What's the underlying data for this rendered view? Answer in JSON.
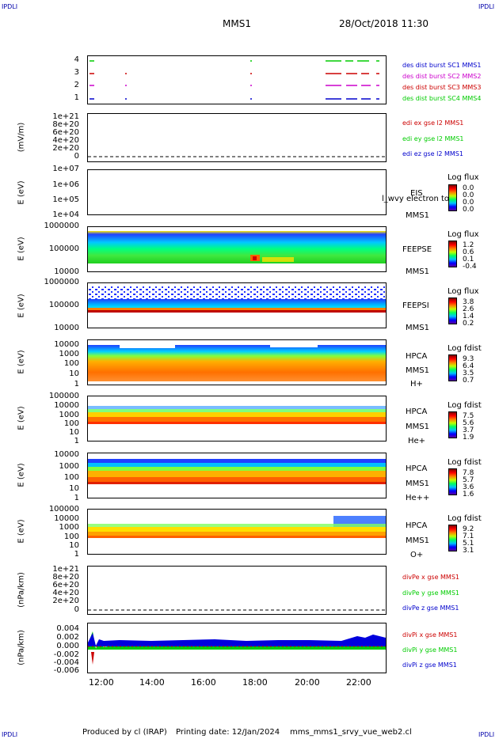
{
  "corners": {
    "tl": "IPDLI",
    "tr": "IPDLI",
    "bl": "IPDLI",
    "br": "IPDLI"
  },
  "header": {
    "spacecraft": "MMS1",
    "datetime": "28/Oct/2018 11:30"
  },
  "colors": {
    "red": "#ff0000",
    "green": "#00cc00",
    "blue": "#0000cc",
    "magenta": "#cc00cc"
  },
  "panels": [
    {
      "id": "burst",
      "ylabel": "",
      "ticks": [
        "4",
        "3",
        "2",
        "1"
      ],
      "legend": [
        {
          "text": "des dist burst SC1 MMS1",
          "color": "#0000cc"
        },
        {
          "text": "des dist burst SC2 MMS2",
          "color": "#cc00cc"
        },
        {
          "text": "des dist burst SC3 MMS3",
          "color": "#cc0000"
        },
        {
          "text": "des dist burst SC4 MMS4",
          "color": "#00cc00"
        }
      ]
    },
    {
      "id": "edi",
      "ylabel": "(mV/m)",
      "ticks": [
        "1e+21",
        "8e+20",
        "6e+20",
        "4e+20",
        "2e+20",
        "0"
      ],
      "legend": [
        {
          "text": "edi ex gse l2 MMS1",
          "color": "#cc0000"
        },
        {
          "text": "edi ey gse l2 MMS1",
          "color": "#00cc00"
        },
        {
          "text": "edi ez gse l2 MMS1",
          "color": "#0000cc"
        }
      ]
    },
    {
      "id": "eis",
      "ylabel": "E (eV)",
      "ticks": [
        "1e+07",
        "1e+06",
        "1e+05",
        "1e+04"
      ],
      "side": [
        "EIS",
        "MMS1"
      ],
      "overlay": "l_wvy electron to",
      "cb_title": "Log flux",
      "cb_vals": [
        "0.0",
        "0.0",
        "0.0",
        "0.0"
      ]
    },
    {
      "id": "feepse",
      "ylabel": "E (eV)",
      "ticks": [
        "1000000",
        "100000",
        "10000"
      ],
      "side": [
        "FEEPSE",
        "MMS1"
      ],
      "cb_title": "Log flux",
      "cb_vals": [
        "1.2",
        "0.6",
        "0.1",
        "-0.4"
      ]
    },
    {
      "id": "feepsi",
      "ylabel": "E (eV)",
      "ticks": [
        "1000000",
        "100000",
        "10000"
      ],
      "side": [
        "FEEPSI",
        "MMS1"
      ],
      "cb_title": "Log flux",
      "cb_vals": [
        "3.8",
        "2.6",
        "1.4",
        "0.2"
      ]
    },
    {
      "id": "hpca_h",
      "ylabel": "E (eV)",
      "ticks": [
        "10000",
        "1000",
        "100",
        "10",
        "1"
      ],
      "side": [
        "HPCA",
        "MMS1",
        "H+"
      ],
      "cb_title": "Log fdist",
      "cb_vals": [
        "9.3",
        "6.4",
        "3.5",
        "0.7"
      ]
    },
    {
      "id": "hpca_he",
      "ylabel": "E (eV)",
      "ticks": [
        "100000",
        "10000",
        "1000",
        "100",
        "10",
        "1"
      ],
      "side": [
        "HPCA",
        "MMS1",
        "He+"
      ],
      "cb_title": "Log fdist",
      "cb_vals": [
        "7.5",
        "5.6",
        "3.7",
        "1.9"
      ]
    },
    {
      "id": "hpca_hepp",
      "ylabel": "E (eV)",
      "ticks": [
        "10000",
        "1000",
        "100",
        "10",
        "1"
      ],
      "side": [
        "HPCA",
        "MMS1",
        "He++"
      ],
      "cb_title": "Log fdist",
      "cb_vals": [
        "7.8",
        "5.7",
        "3.6",
        "1.6"
      ]
    },
    {
      "id": "hpca_o",
      "ylabel": "E (eV)",
      "ticks": [
        "100000",
        "10000",
        "1000",
        "100",
        "10",
        "1"
      ],
      "side": [
        "HPCA",
        "MMS1",
        "O+"
      ],
      "cb_title": "Log fdist",
      "cb_vals": [
        "9.2",
        "7.1",
        "5.1",
        "3.1"
      ]
    },
    {
      "id": "divpe",
      "ylabel": "(nPa/km)",
      "ticks": [
        "1e+21",
        "8e+20",
        "6e+20",
        "4e+20",
        "2e+20",
        "0"
      ],
      "legend": [
        {
          "text": "divPe x gse MMS1",
          "color": "#cc0000"
        },
        {
          "text": "divPe y gse MMS1",
          "color": "#00cc00"
        },
        {
          "text": "divPe z gse MMS1",
          "color": "#0000cc"
        }
      ]
    },
    {
      "id": "divpi",
      "ylabel": "(nPa/km)",
      "ticks": [
        "0.004",
        "0.002",
        "0.000",
        "-0.002",
        "-0.004",
        "-0.006"
      ],
      "legend": [
        {
          "text": "divPi x gse MMS1",
          "color": "#cc0000"
        },
        {
          "text": "divPi y gse MMS1",
          "color": "#00cc00"
        },
        {
          "text": "divPi z gse MMS1",
          "color": "#0000cc"
        }
      ]
    }
  ],
  "chart_data": {
    "type": "heatmap",
    "x_ticks": [
      "12:00",
      "14:00",
      "16:00",
      "18:00",
      "20:00",
      "22:00"
    ],
    "xlim": [
      "11:30",
      "23:00"
    ]
  },
  "footer": {
    "producer": "Produced by cl (IRAP)",
    "printing": "Printing date: 12/Jan/2024",
    "file": "mms_mms1_srvy_vue_web2.cl"
  }
}
